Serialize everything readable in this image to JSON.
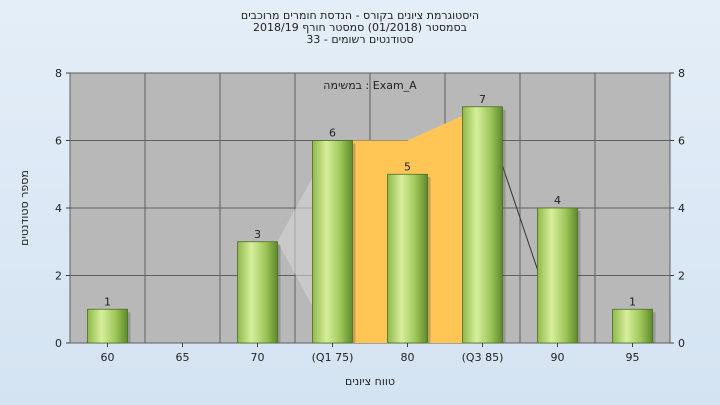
{
  "title_lines": [
    "היסטוגרמת ציונים בקורס - הנדסת חומרים מרוכבים",
    "בסמסטר  (01/2018)  סמסטר חורף 2018/19",
    "33 - סטודנטים רשומים"
  ],
  "chart_data": {
    "type": "bar",
    "categories": [
      "60",
      "65",
      "70",
      "(Q1 75)",
      "80",
      "(Q3 85)",
      "90",
      "95"
    ],
    "values": [
      1,
      0,
      3,
      6,
      5,
      7,
      4,
      1
    ],
    "data_labels": [
      "1",
      "",
      "3",
      "6",
      "5",
      "7",
      "4",
      "1"
    ],
    "xlabel": "טווח ציונים",
    "ylabel": "מספר סטודנטים",
    "ylim": [
      0,
      8
    ],
    "yticks": [
      "0",
      "2",
      "4",
      "6",
      "8"
    ],
    "annotation": "במשימה : Exam_A",
    "grid": true,
    "iqr_band": {
      "from_category": "(Q1 75)",
      "to_category": "(Q3 85)",
      "color": "#ffc655"
    },
    "colors": {
      "bar_light": "#d7ef9c",
      "bar_mid": "#9fc65a",
      "bar_dark": "#5e8a2a",
      "plot_bg": "#b8b8b8",
      "grid": "#5f5f5f"
    }
  }
}
